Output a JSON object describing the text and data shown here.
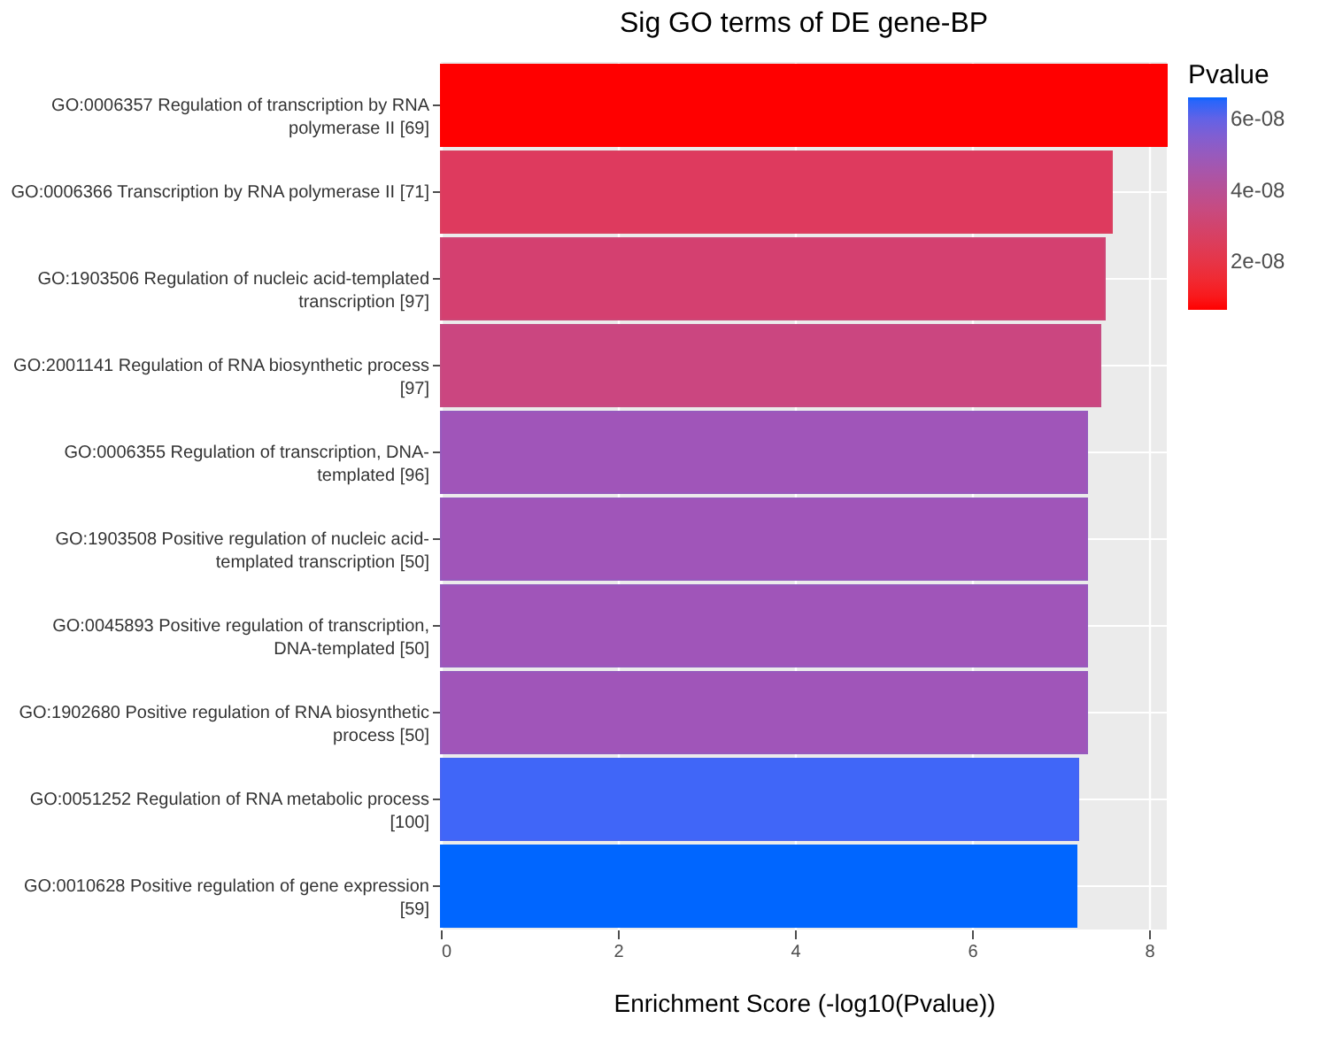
{
  "chart_data": {
    "type": "bar",
    "orientation": "horizontal",
    "title": "Sig GO terms of DE gene-BP",
    "xlabel": "Enrichment Score (-log10(Pvalue))",
    "clabel": "Pvalue",
    "categories": [
      "GO:0006357 Regulation of transcription by RNA polymerase II [69]",
      "GO:0006366 Transcription by RNA polymerase II [71]",
      "GO:1903506 Regulation of nucleic acid-templated transcription [97]",
      "GO:2001141 Regulation of RNA biosynthetic process [97]",
      "GO:0006355 Regulation of transcription, DNA-templated [96]",
      "GO:1903508 Positive regulation of nucleic acid-templated transcription [50]",
      "GO:0045893 Positive regulation of transcription, DNA-templated [50]",
      "GO:1902680 Positive regulation of RNA biosynthetic process [50]",
      "GO:0051252 Regulation of RNA metabolic process [100]",
      "GO:0010628 Positive regulation of gene expression [59]"
    ],
    "values": [
      8.2,
      7.58,
      7.5,
      7.45,
      7.3,
      7.3,
      7.3,
      7.3,
      7.2,
      7.18
    ],
    "colors": [
      "#ff0000",
      "#de3a5e",
      "#d44070",
      "#cb4680",
      "#a055b9",
      "#a055b9",
      "#a055b9",
      "#a055b9",
      "#4066f8",
      "#0066ff"
    ],
    "cvalues": [
      6.3e-09,
      2.6e-08,
      3.2e-08,
      3.5e-08,
      5e-08,
      5e-08,
      5e-08,
      5e-08,
      6.3e-08,
      6.6e-08
    ],
    "clim": [
      6.3e-09,
      6.6e-08
    ],
    "cticks": [
      {
        "value": 2e-08,
        "label": "2e-08"
      },
      {
        "value": 4e-08,
        "label": "4e-08"
      },
      {
        "value": 6e-08,
        "label": "6e-08"
      }
    ],
    "xlim": [
      0,
      8.2
    ],
    "xticks": [
      0,
      2,
      4,
      6,
      8
    ],
    "grid": true
  }
}
